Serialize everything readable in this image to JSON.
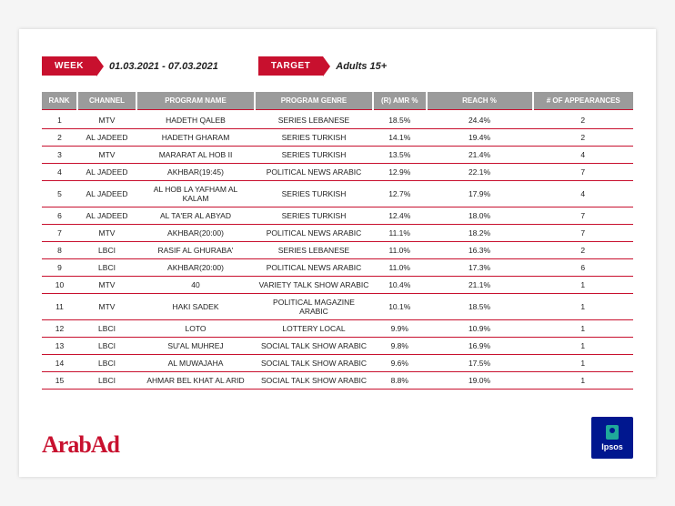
{
  "header": {
    "week_label": "WEEK",
    "week_value": "01.03.2021 - 07.03.2021",
    "target_label": "TARGET",
    "target_value": "Adults 15+"
  },
  "columns": [
    "RANK",
    "CHANNEL",
    "PROGRAM NAME",
    "PROGRAM GENRE",
    "(R) AMR %",
    "REACH %",
    "# OF APPEARANCES"
  ],
  "rows": [
    [
      "1",
      "MTV",
      "HADETH QALEB",
      "SERIES LEBANESE",
      "18.5%",
      "24.4%",
      "2"
    ],
    [
      "2",
      "AL JADEED",
      "HADETH GHARAM",
      "SERIES TURKISH",
      "14.1%",
      "19.4%",
      "2"
    ],
    [
      "3",
      "MTV",
      "MARARAT AL HOB II",
      "SERIES TURKISH",
      "13.5%",
      "21.4%",
      "4"
    ],
    [
      "4",
      "AL JADEED",
      "AKHBAR(19:45)",
      "POLITICAL NEWS ARABIC",
      "12.9%",
      "22.1%",
      "7"
    ],
    [
      "5",
      "AL JADEED",
      "AL HOB LA YAFHAM AL KALAM",
      "SERIES TURKISH",
      "12.7%",
      "17.9%",
      "4"
    ],
    [
      "6",
      "AL JADEED",
      "AL TA'ER AL ABYAD",
      "SERIES TURKISH",
      "12.4%",
      "18.0%",
      "7"
    ],
    [
      "7",
      "MTV",
      "AKHBAR(20:00)",
      "POLITICAL NEWS ARABIC",
      "11.1%",
      "18.2%",
      "7"
    ],
    [
      "8",
      "LBCI",
      "RASIF AL GHURABA'",
      "SERIES LEBANESE",
      "11.0%",
      "16.3%",
      "2"
    ],
    [
      "9",
      "LBCI",
      "AKHBAR(20:00)",
      "POLITICAL NEWS ARABIC",
      "11.0%",
      "17.3%",
      "6"
    ],
    [
      "10",
      "MTV",
      "40",
      "VARIETY TALK SHOW ARABIC",
      "10.4%",
      "21.1%",
      "1"
    ],
    [
      "11",
      "MTV",
      "HAKI SADEK",
      "POLITICAL MAGAZINE ARABIC",
      "10.1%",
      "18.5%",
      "1"
    ],
    [
      "12",
      "LBCI",
      "LOTO",
      "LOTTERY LOCAL",
      "9.9%",
      "10.9%",
      "1"
    ],
    [
      "13",
      "LBCI",
      "SU'AL MUHREJ",
      "SOCIAL TALK SHOW ARABIC",
      "9.8%",
      "16.9%",
      "1"
    ],
    [
      "14",
      "LBCI",
      "AL MUWAJAHA",
      "SOCIAL TALK SHOW ARABIC",
      "9.6%",
      "17.5%",
      "1"
    ],
    [
      "15",
      "LBCI",
      "AHMAR BEL KHAT AL ARID",
      "SOCIAL TALK SHOW ARABIC",
      "8.8%",
      "19.0%",
      "1"
    ]
  ],
  "logos": {
    "left": "ArabAd",
    "right": "Ipsos"
  },
  "colors": {
    "accent_red": "#c8102e",
    "header_gray": "#9b9b9b",
    "ipsos_blue": "#00178f",
    "ipsos_teal": "#1fa89a"
  }
}
